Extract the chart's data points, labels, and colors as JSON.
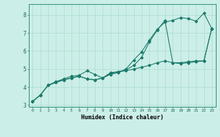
{
  "xlabel": "Humidex (Indice chaleur)",
  "background_color": "#cceee8",
  "grid_color": "#aaddcc",
  "line_color": "#1a7a6a",
  "xlim": [
    -0.5,
    23.5
  ],
  "ylim": [
    2.9,
    8.6
  ],
  "yticks": [
    3,
    4,
    5,
    6,
    7,
    8
  ],
  "xticks": [
    0,
    1,
    2,
    3,
    4,
    5,
    6,
    7,
    8,
    9,
    10,
    11,
    12,
    13,
    14,
    15,
    16,
    17,
    18,
    19,
    20,
    21,
    22,
    23
  ],
  "line1_x": [
    0,
    1,
    2,
    3,
    4,
    5,
    6,
    7,
    8,
    9,
    10,
    11,
    12,
    13,
    14,
    15,
    16,
    17,
    18,
    19,
    20,
    21,
    22,
    23
  ],
  "line1_y": [
    3.2,
    3.55,
    4.1,
    4.25,
    4.4,
    4.5,
    4.6,
    4.45,
    4.4,
    4.5,
    4.8,
    4.85,
    4.9,
    5.0,
    5.1,
    5.2,
    5.35,
    5.45,
    5.35,
    5.35,
    5.4,
    5.45,
    5.45,
    7.25
  ],
  "line2_x": [
    0,
    1,
    2,
    3,
    4,
    5,
    6,
    7,
    8,
    9,
    10,
    11,
    12,
    13,
    14,
    15,
    16,
    17,
    18,
    19,
    20,
    21,
    22,
    23
  ],
  "line2_y": [
    3.2,
    3.55,
    4.1,
    4.3,
    4.45,
    4.6,
    4.65,
    4.9,
    4.7,
    4.5,
    4.7,
    4.8,
    5.0,
    5.5,
    5.95,
    6.6,
    7.2,
    7.6,
    7.7,
    7.85,
    7.8,
    7.65,
    8.1,
    7.25
  ],
  "line3_x": [
    0,
    1,
    2,
    3,
    4,
    5,
    6,
    7,
    8,
    9,
    10,
    11,
    12,
    13,
    14,
    15,
    16,
    17,
    18,
    19,
    20,
    21,
    22,
    23
  ],
  "line3_y": [
    3.2,
    3.55,
    4.1,
    4.25,
    4.4,
    4.5,
    4.6,
    4.45,
    4.4,
    4.5,
    4.75,
    4.85,
    4.95,
    5.2,
    5.65,
    6.5,
    7.15,
    7.7,
    5.35,
    5.3,
    5.35,
    5.4,
    5.45,
    7.25
  ]
}
